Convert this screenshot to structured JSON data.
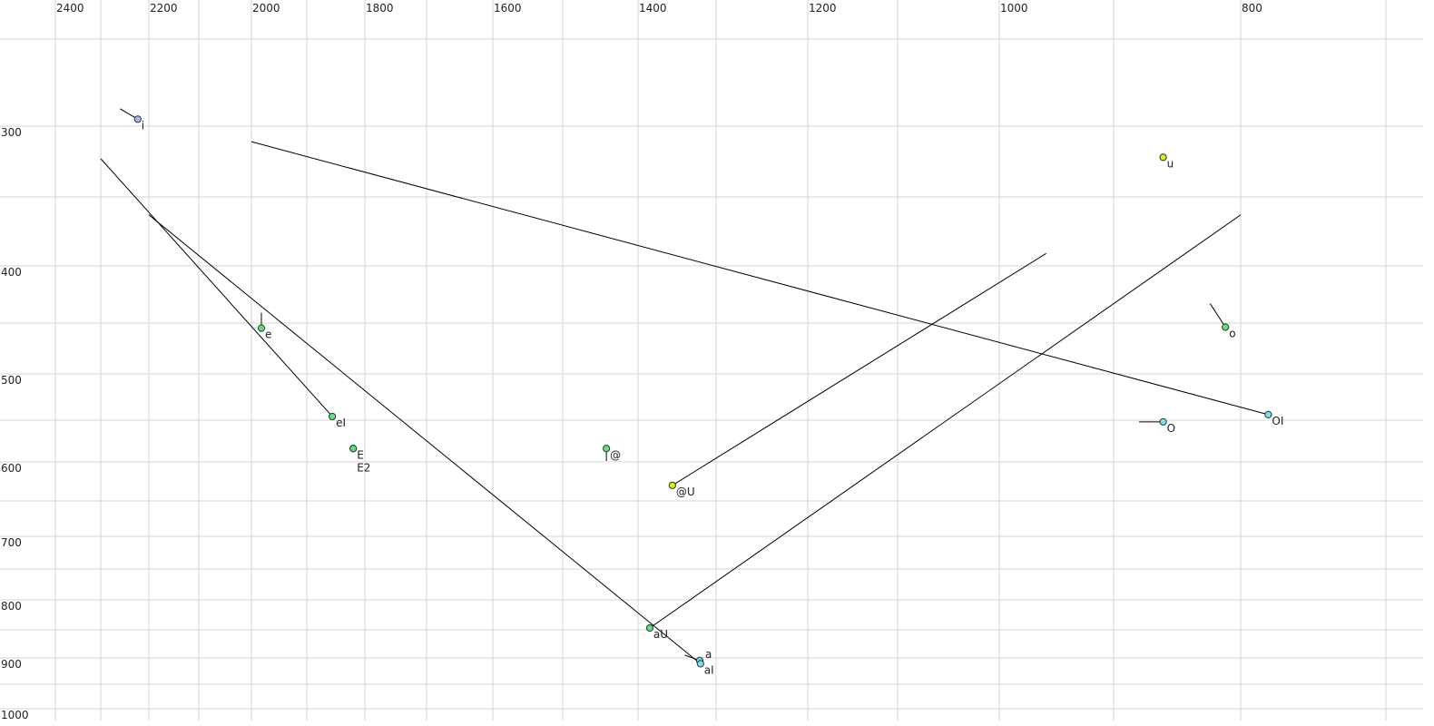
{
  "chart_data": {
    "type": "scatter",
    "title": "",
    "xlabel": "",
    "ylabel": "",
    "x_axis": {
      "quantity": "F2",
      "reversed": true,
      "scale": "bark-like nonlinear",
      "ticks": [
        2400,
        2200,
        2000,
        1800,
        1600,
        1400,
        1200,
        1000,
        800
      ],
      "grid": [
        2400,
        2300,
        2200,
        2100,
        2000,
        1900,
        1800,
        1700,
        1600,
        1500,
        1400,
        1300,
        1200,
        1100,
        1000,
        900,
        800,
        700
      ]
    },
    "y_axis": {
      "quantity": "F1",
      "reversed": true,
      "scale": "bark-like nonlinear",
      "ticks": [
        300,
        400,
        500,
        600,
        700,
        800,
        900,
        1000
      ],
      "grid": [
        250,
        300,
        350,
        400,
        450,
        500,
        550,
        600,
        650,
        700,
        750,
        800,
        850,
        900,
        950,
        1000
      ]
    },
    "grid": true,
    "points": [
      {
        "label": "i",
        "f2": 2223,
        "f1": 296,
        "from": {
          "f2": 2260,
          "f1": 290
        },
        "color": "#a9b9ef"
      },
      {
        "label": "u",
        "f2": 861,
        "f1": 322,
        "from": null,
        "color": "#d8ef1a"
      },
      {
        "label": "e",
        "f2": 1982,
        "f1": 455,
        "from": {
          "f2": 1982,
          "f1": 441
        },
        "color": "#5ae47a"
      },
      {
        "label": "eI",
        "f2": 1856,
        "f1": 546,
        "from": {
          "f2": 2300,
          "f1": 323
        },
        "color": "#5ae47a"
      },
      {
        "label": "E",
        "f2": 1820,
        "f1": 584,
        "from": null,
        "color": "#5ae47a"
      },
      {
        "label": "E2",
        "f2": 1820,
        "f1": 584,
        "from": null,
        "color": "#5ae47a"
      },
      {
        "label": "@",
        "f2": 1442,
        "f1": 584,
        "from": {
          "f2": 1442,
          "f1": 599
        },
        "color": "#5ae47a"
      },
      {
        "label": "@U",
        "f2": 1356,
        "f1": 630,
        "from": {
          "f2": 959,
          "f1": 391
        },
        "color": "#d8ef1a"
      },
      {
        "label": "aU",
        "f2": 1385,
        "f1": 847,
        "from": {
          "f2": 800,
          "f1": 363
        },
        "color": "#5ae47a"
      },
      {
        "label": "a",
        "f2": 1321,
        "f1": 905,
        "from": {
          "f2": 1340,
          "f1": 895
        },
        "color": "#72e2f0"
      },
      {
        "label": "aI",
        "f2": 1320,
        "f1": 911,
        "from": {
          "f2": 2200,
          "f1": 363
        },
        "color": "#72e2f0"
      },
      {
        "label": "o",
        "f2": 812,
        "f1": 454,
        "from": {
          "f2": 824,
          "f1": 433
        },
        "color": "#5ae47a"
      },
      {
        "label": "O",
        "f2": 861,
        "f1": 552,
        "from": {
          "f2": 880,
          "f1": 552
        },
        "color": "#72e2f0"
      },
      {
        "label": "OI",
        "f2": 781,
        "f1": 544,
        "from": {
          "f2": 2000,
          "f1": 311
        },
        "color": "#72e2f0"
      }
    ]
  }
}
